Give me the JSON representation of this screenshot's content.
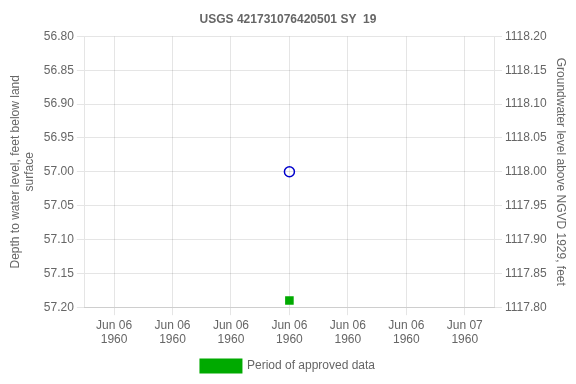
{
  "chart_data": {
    "type": "scatter",
    "title": "USGS 421731076420501 SY  19",
    "ylabel": "Depth to water level, feet below land\nsurface",
    "y2label": "Groundwater level above NGVD 1929, feet",
    "categories": [
      "Jun 06\n1960",
      "Jun 06\n1960",
      "Jun 06\n1960",
      "Jun 06\n1960",
      "Jun 06\n1960",
      "Jun 06\n1960",
      "Jun 07\n1960"
    ],
    "series": [
      {
        "color": "#0000cc",
        "marker": "circle",
        "values": [
          null,
          null,
          null,
          57.0,
          null,
          null,
          null
        ]
      },
      {
        "name": "Period of approved data",
        "color": "#00aa00",
        "marker": "square",
        "values": [
          null,
          null,
          null,
          57.19,
          null,
          null,
          null
        ]
      }
    ],
    "ylim": [
      57.2,
      56.8
    ],
    "yticks": [
      {
        "value": 56.8,
        "label": "56.80"
      },
      {
        "value": 56.85,
        "label": "56.85"
      },
      {
        "value": 56.9,
        "label": "56.90"
      },
      {
        "value": 56.95,
        "label": "56.95"
      },
      {
        "value": 57.0,
        "label": "57.00"
      },
      {
        "value": 57.05,
        "label": "57.05"
      },
      {
        "value": 57.1,
        "label": "57.10"
      },
      {
        "value": 57.15,
        "label": "57.15"
      },
      {
        "value": 57.2,
        "label": "57.20"
      }
    ],
    "y2lim": [
      1117.8,
      1118.2
    ],
    "y2ticks": [
      {
        "value": 1117.8,
        "label": "1117.80"
      },
      {
        "value": 1117.85,
        "label": "1117.85"
      },
      {
        "value": 1117.9,
        "label": "1117.90"
      },
      {
        "value": 1117.95,
        "label": "1117.95"
      },
      {
        "value": 1118.0,
        "label": "1118.00"
      },
      {
        "value": 1118.05,
        "label": "1118.05"
      },
      {
        "value": 1118.1,
        "label": "1118.10"
      },
      {
        "value": 1118.15,
        "label": "1118.15"
      },
      {
        "value": 1118.2,
        "label": "1118.20"
      }
    ],
    "grid": true,
    "legend": "bottom"
  }
}
